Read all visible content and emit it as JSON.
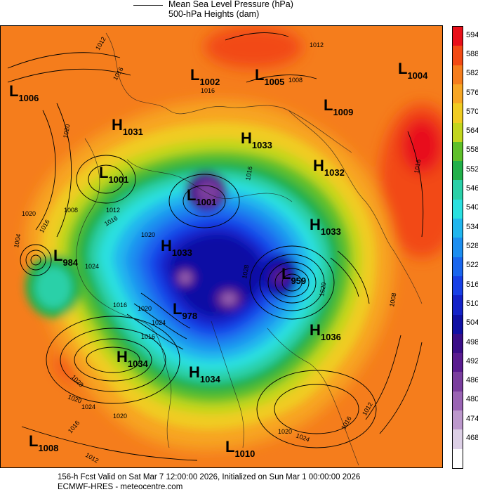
{
  "legend": {
    "line1": "Mean Sea Level Pressure (hPa)",
    "line2": "500-hPa Heights (dam)"
  },
  "colorbar": [
    {
      "value": "594",
      "color": "#e8101a"
    },
    {
      "value": "588",
      "color": "#f24a14"
    },
    {
      "value": "582",
      "color": "#f57d1c"
    },
    {
      "value": "576",
      "color": "#f7a624"
    },
    {
      "value": "570",
      "color": "#f0cc22"
    },
    {
      "value": "564",
      "color": "#c2d61e"
    },
    {
      "value": "558",
      "color": "#5fc02a"
    },
    {
      "value": "552",
      "color": "#22b04a"
    },
    {
      "value": "546",
      "color": "#2ad0a8"
    },
    {
      "value": "540",
      "color": "#2ae0e0"
    },
    {
      "value": "534",
      "color": "#20b6ee"
    },
    {
      "value": "528",
      "color": "#1c8ef0"
    },
    {
      "value": "522",
      "color": "#1a66ee"
    },
    {
      "value": "516",
      "color": "#1840e6"
    },
    {
      "value": "510",
      "color": "#1422c8"
    },
    {
      "value": "504",
      "color": "#1010a4"
    },
    {
      "value": "498",
      "color": "#3a0e88"
    },
    {
      "value": "492",
      "color": "#5a1c90"
    },
    {
      "value": "486",
      "color": "#7a3e9e"
    },
    {
      "value": "480",
      "color": "#9a64b4"
    },
    {
      "value": "474",
      "color": "#bc98cc"
    },
    {
      "value": "468",
      "color": "#ddd0e6"
    },
    {
      "value": "",
      "color": "#ffffff"
    }
  ],
  "systems": [
    {
      "type": "L",
      "value": "1006"
    },
    {
      "type": "L",
      "value": "1002"
    },
    {
      "type": "L",
      "value": "1005"
    },
    {
      "type": "L",
      "value": "1004"
    },
    {
      "type": "L",
      "value": "1009"
    },
    {
      "type": "H",
      "value": "1031"
    },
    {
      "type": "H",
      "value": "1033"
    },
    {
      "type": "L",
      "value": "1001"
    },
    {
      "type": "L",
      "value": "1001"
    },
    {
      "type": "H",
      "value": "1032"
    },
    {
      "type": "H",
      "value": "1033"
    },
    {
      "type": "L",
      "value": "984"
    },
    {
      "type": "H",
      "value": "1033"
    },
    {
      "type": "L",
      "value": "959"
    },
    {
      "type": "L",
      "value": "978"
    },
    {
      "type": "H",
      "value": "1036"
    },
    {
      "type": "H",
      "value": "1034"
    },
    {
      "type": "H",
      "value": "1034"
    },
    {
      "type": "L",
      "value": "1008"
    },
    {
      "type": "L",
      "value": "1010"
    }
  ],
  "isobar_labels": [
    "1012",
    "1016",
    "1020",
    "1012",
    "1016",
    "1008",
    "1016",
    "1020",
    "1016",
    "1004",
    "1008",
    "1012",
    "1016",
    "1020",
    "1024",
    "1028",
    "1020",
    "1016",
    "1020",
    "1024",
    "1016",
    "1028",
    "1020",
    "1024",
    "1020",
    "1016",
    "1012",
    "1020",
    "1024",
    "1016",
    "1012",
    "1008",
    "1016"
  ],
  "footer": {
    "line1": "156-h Fcst Valid on Sat Mar  7 12:00:00 2026, Initialized on Sun Mar  1 00:00:00 2026",
    "line2": "ECMWF-HRES  - meteocentre.com"
  }
}
